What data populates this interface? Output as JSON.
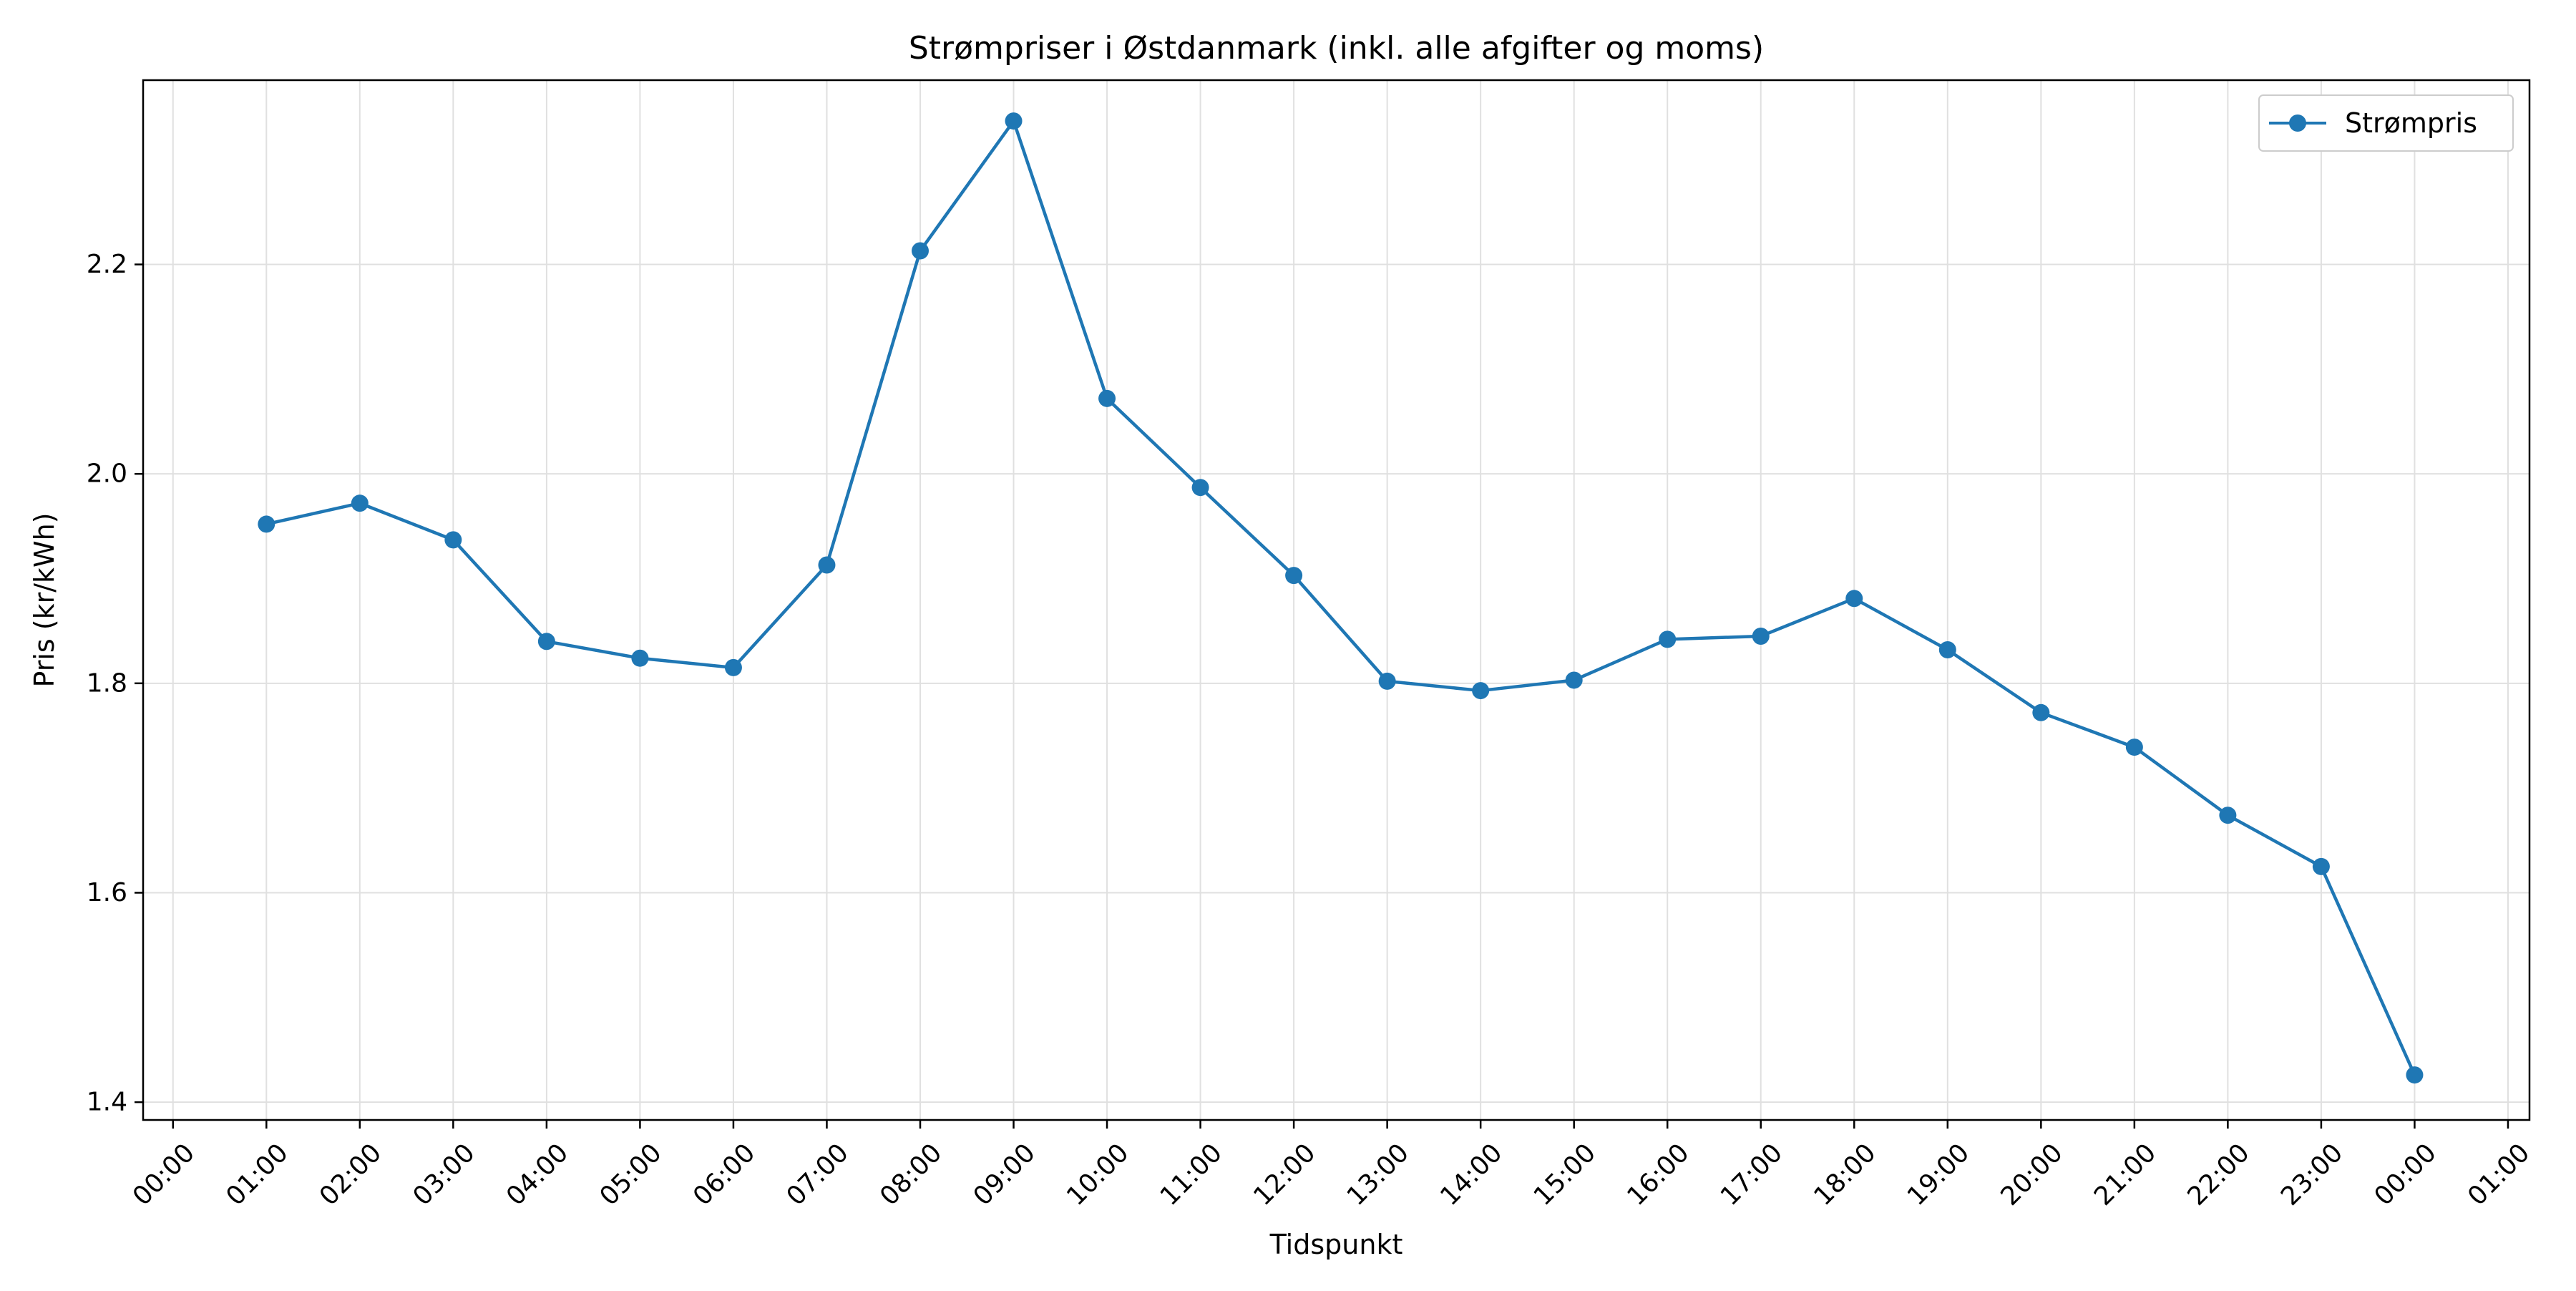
{
  "chart_data": {
    "type": "line",
    "title": "Strømpriser i Østdanmark (inkl. alle afgifter og moms)",
    "xlabel": "Tidspunkt",
    "ylabel": "Pris (kr/kWh)",
    "x_ticks": [
      "00:00",
      "01:00",
      "02:00",
      "03:00",
      "04:00",
      "05:00",
      "06:00",
      "07:00",
      "08:00",
      "09:00",
      "10:00",
      "11:00",
      "12:00",
      "13:00",
      "14:00",
      "15:00",
      "16:00",
      "17:00",
      "18:00",
      "19:00",
      "20:00",
      "21:00",
      "22:00",
      "23:00",
      "00:00",
      "01:00"
    ],
    "y_ticks": [
      "1.4",
      "1.6",
      "1.8",
      "2.0",
      "2.2"
    ],
    "ylim": [
      1.383,
      2.376
    ],
    "grid": true,
    "legend_position": "top-right",
    "colors": {
      "series": "#1f77b4",
      "grid": "#e0e0e0",
      "axis": "#000000"
    },
    "series": [
      {
        "name": "Strømpris",
        "x": [
          "01:00",
          "02:00",
          "03:00",
          "04:00",
          "05:00",
          "06:00",
          "07:00",
          "08:00",
          "09:00",
          "10:00",
          "11:00",
          "12:00",
          "13:00",
          "14:00",
          "15:00",
          "16:00",
          "17:00",
          "18:00",
          "19:00",
          "20:00",
          "21:00",
          "22:00",
          "23:00",
          "00:00"
        ],
        "values": [
          1.952,
          1.972,
          1.937,
          1.84,
          1.824,
          1.815,
          1.913,
          2.213,
          2.337,
          2.072,
          1.987,
          1.903,
          1.802,
          1.793,
          1.803,
          1.842,
          1.845,
          1.881,
          1.832,
          1.772,
          1.739,
          1.674,
          1.625,
          1.426
        ]
      }
    ]
  }
}
